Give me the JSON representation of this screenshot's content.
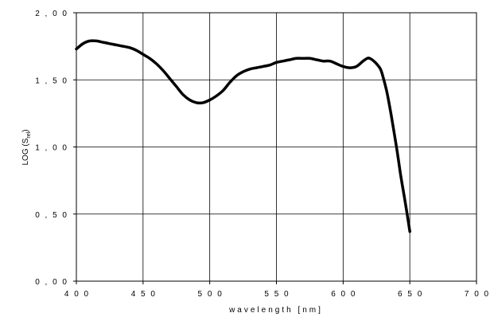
{
  "chart_data": {
    "type": "line",
    "title": "",
    "xlabel": "wavelength [nm]",
    "ylabel_main": "LOG (S",
    "ylabel_sub": "rel",
    "ylabel_close": ")",
    "xlim": [
      400,
      700
    ],
    "ylim": [
      0,
      2
    ],
    "x_ticks": [
      400,
      450,
      500,
      550,
      600,
      650,
      700
    ],
    "x_tick_labels": [
      "4 0 0",
      "4 5 0",
      "5 0 0",
      "5 5 0",
      "6 0 0",
      "6 5 0",
      "7 0 0"
    ],
    "y_ticks": [
      0,
      0.5,
      1.0,
      1.5,
      2.0
    ],
    "y_tick_labels": [
      "0 , 0 0",
      "0 , 5 0",
      "1 , 0 0",
      "1 , 5 0",
      "2 , 0 0"
    ],
    "grid": true,
    "legend": "none",
    "line_color": "#000000",
    "series": [
      {
        "x": [
          400,
          405,
          410,
          415,
          420,
          425,
          430,
          435,
          440,
          445,
          450,
          455,
          460,
          465,
          470,
          475,
          480,
          485,
          490,
          495,
          500,
          505,
          510,
          515,
          520,
          525,
          530,
          535,
          540,
          545,
          550,
          555,
          560,
          565,
          570,
          575,
          580,
          585,
          590,
          595,
          600,
          605,
          610,
          615,
          618,
          620,
          623,
          625,
          628,
          630,
          633,
          636,
          640,
          643,
          646,
          648,
          650
        ],
        "y": [
          1.73,
          1.77,
          1.79,
          1.79,
          1.78,
          1.77,
          1.76,
          1.75,
          1.74,
          1.72,
          1.69,
          1.66,
          1.62,
          1.57,
          1.51,
          1.45,
          1.39,
          1.35,
          1.33,
          1.33,
          1.35,
          1.38,
          1.42,
          1.48,
          1.53,
          1.56,
          1.58,
          1.59,
          1.6,
          1.61,
          1.63,
          1.64,
          1.65,
          1.66,
          1.66,
          1.66,
          1.65,
          1.64,
          1.64,
          1.62,
          1.6,
          1.59,
          1.6,
          1.64,
          1.66,
          1.66,
          1.64,
          1.62,
          1.58,
          1.52,
          1.4,
          1.24,
          1.0,
          0.8,
          0.62,
          0.5,
          0.37
        ]
      }
    ]
  }
}
